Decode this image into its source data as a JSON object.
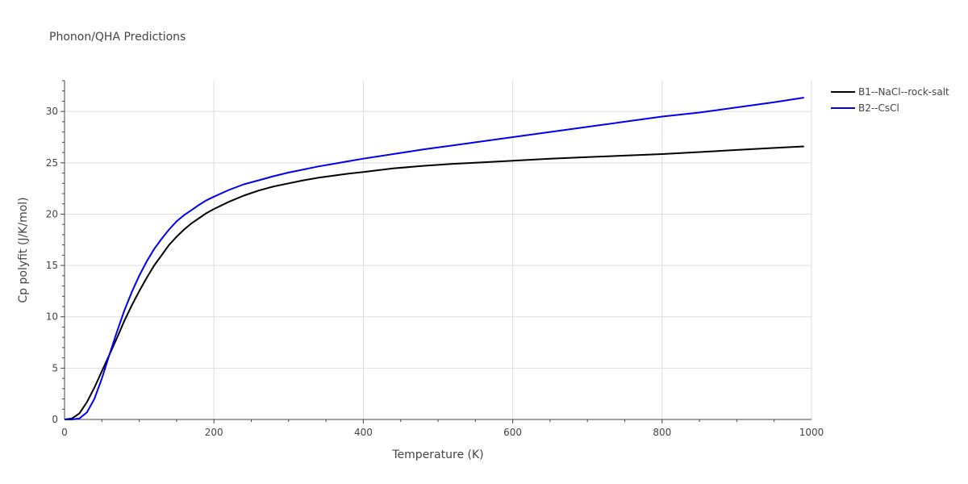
{
  "chart_data": {
    "type": "line",
    "title": "Phonon/QHA Predictions",
    "xlabel": "Temperature (K)",
    "ylabel": "Cp polyfit (J/K/mol)",
    "xlim": [
      0,
      1000
    ],
    "ylim": [
      0,
      33
    ],
    "x_ticks": [
      "0",
      "200",
      "400",
      "600",
      "800",
      "1000"
    ],
    "y_ticks": [
      "0",
      "5",
      "10",
      "15",
      "20",
      "25",
      "30"
    ],
    "grid": true,
    "legend_position": "top-right",
    "series": [
      {
        "name": "B1--NaCl--rock-salt",
        "color": "#000000",
        "x": [
          10,
          20,
          30,
          40,
          50,
          60,
          70,
          80,
          90,
          100,
          110,
          120,
          130,
          140,
          150,
          160,
          170,
          180,
          190,
          200,
          220,
          240,
          260,
          280,
          300,
          320,
          340,
          360,
          380,
          400,
          440,
          480,
          520,
          560,
          600,
          650,
          700,
          750,
          800,
          850,
          900,
          950,
          990
        ],
        "y": [
          0.1,
          0.6,
          1.7,
          3.1,
          4.7,
          6.3,
          7.9,
          9.6,
          11.1,
          12.5,
          13.8,
          15.0,
          16.0,
          17.0,
          17.8,
          18.5,
          19.1,
          19.6,
          20.1,
          20.5,
          21.2,
          21.8,
          22.3,
          22.7,
          23.0,
          23.3,
          23.55,
          23.75,
          23.95,
          24.1,
          24.45,
          24.7,
          24.9,
          25.05,
          25.2,
          25.4,
          25.55,
          25.7,
          25.85,
          26.05,
          26.25,
          26.45,
          26.6
        ]
      },
      {
        "name": "B2--CsCl",
        "color": "#0000ee",
        "x": [
          10,
          20,
          30,
          40,
          50,
          60,
          70,
          80,
          90,
          100,
          110,
          120,
          130,
          140,
          150,
          160,
          170,
          180,
          190,
          200,
          220,
          240,
          260,
          280,
          300,
          320,
          340,
          360,
          380,
          400,
          440,
          480,
          520,
          560,
          600,
          650,
          700,
          750,
          800,
          850,
          900,
          950,
          990
        ],
        "y": [
          0.0,
          0.1,
          0.7,
          2.0,
          4.0,
          6.3,
          8.5,
          10.6,
          12.4,
          14.0,
          15.4,
          16.6,
          17.6,
          18.5,
          19.3,
          19.9,
          20.4,
          20.9,
          21.35,
          21.7,
          22.35,
          22.9,
          23.3,
          23.7,
          24.05,
          24.35,
          24.65,
          24.9,
          25.15,
          25.4,
          25.85,
          26.3,
          26.7,
          27.1,
          27.5,
          28.0,
          28.5,
          29.0,
          29.5,
          29.9,
          30.4,
          30.9,
          31.35
        ]
      }
    ]
  }
}
